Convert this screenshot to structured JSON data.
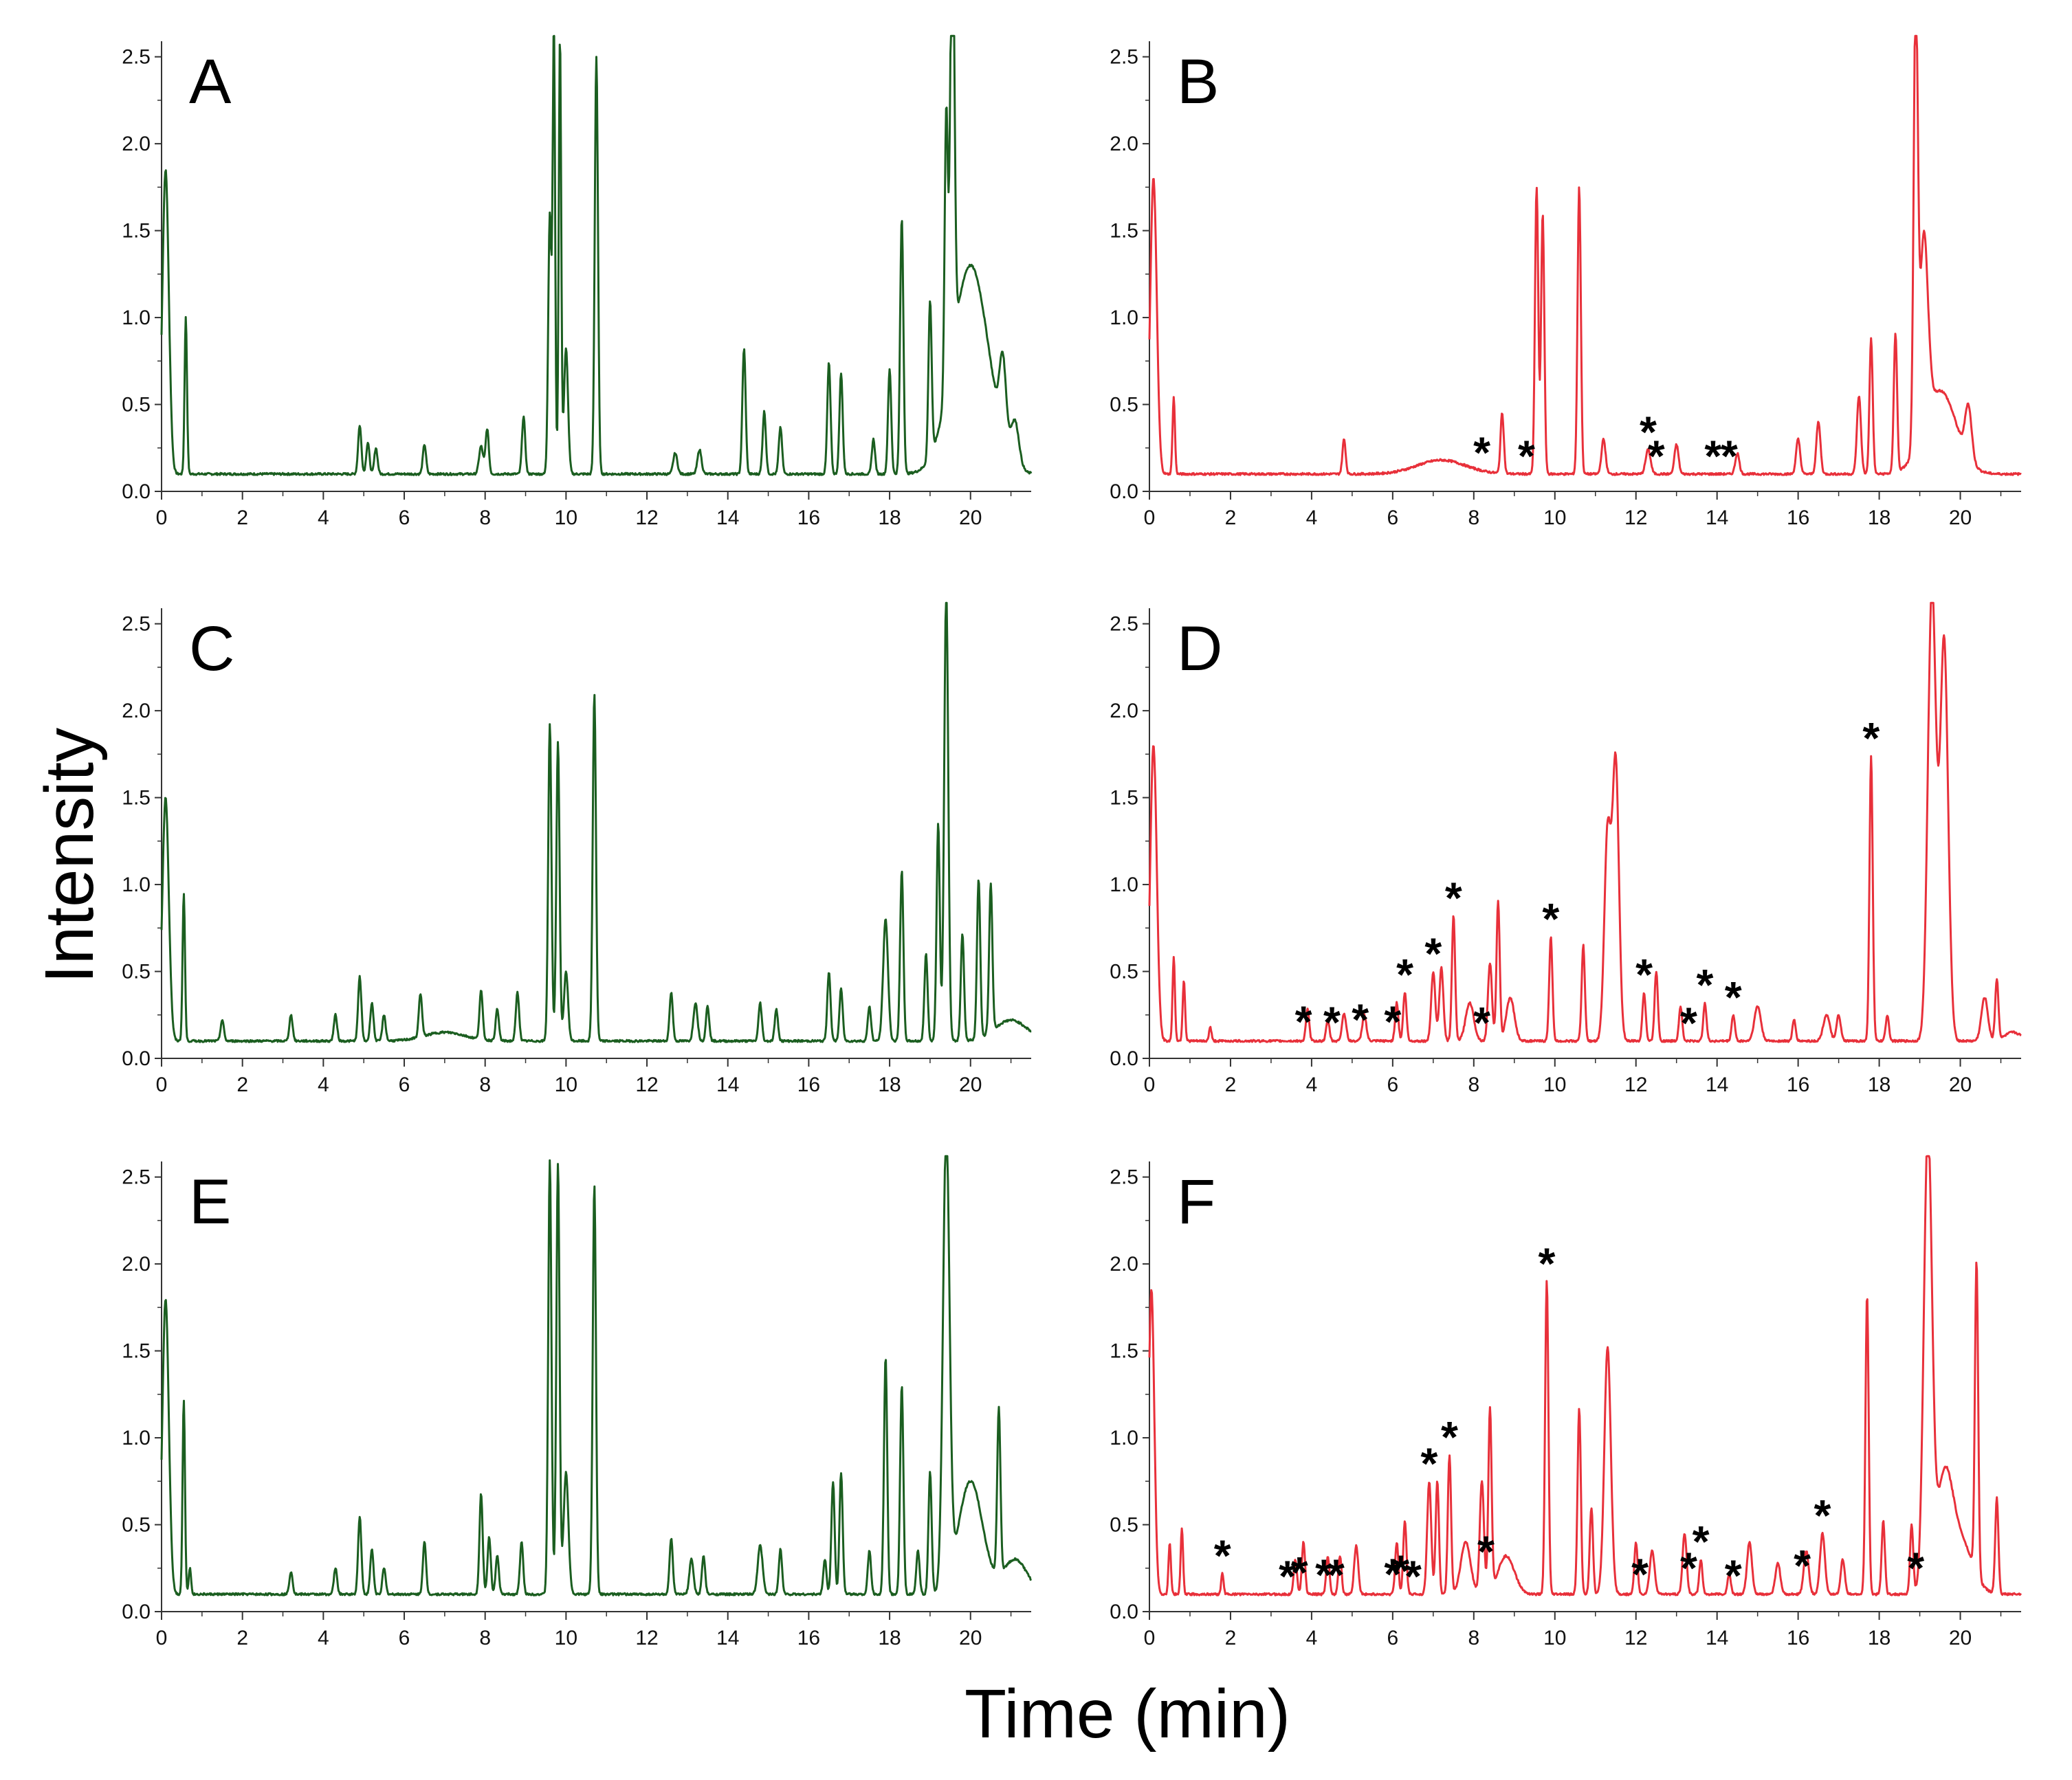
{
  "figure": {
    "ylabel": "Intensity",
    "xlabel": "Time (min)"
  },
  "colors": {
    "green": "#1b5e20",
    "red": "#e8303a"
  },
  "chart_data": [
    {
      "type": "line",
      "panel": "A",
      "color": "#1b5e20",
      "xlim": [
        0,
        21.5
      ],
      "ylim": [
        0,
        2.55
      ],
      "xticks": [
        "0",
        "2",
        "4",
        "6",
        "8",
        "10",
        "12",
        "14",
        "16",
        "18",
        "20"
      ],
      "yticks": [
        "0.0",
        "0.5",
        "1.0",
        "1.5",
        "2.0",
        "2.5"
      ],
      "baseline": 0.1,
      "peaks": [
        [
          0.1,
          1.75,
          0.08
        ],
        [
          0.6,
          0.9,
          0.03
        ],
        [
          4.9,
          0.28,
          0.04
        ],
        [
          5.1,
          0.18,
          0.04
        ],
        [
          5.3,
          0.15,
          0.04
        ],
        [
          6.5,
          0.17,
          0.04
        ],
        [
          7.9,
          0.16,
          0.05
        ],
        [
          8.05,
          0.26,
          0.04
        ],
        [
          8.95,
          0.33,
          0.04
        ],
        [
          9.6,
          1.5,
          0.04
        ],
        [
          9.7,
          2.53,
          0.03
        ],
        [
          9.85,
          2.52,
          0.03
        ],
        [
          10.0,
          0.72,
          0.05
        ],
        [
          10.75,
          2.4,
          0.04
        ],
        [
          12.7,
          0.12,
          0.05
        ],
        [
          13.3,
          0.14,
          0.05
        ],
        [
          14.4,
          0.72,
          0.04
        ],
        [
          14.9,
          0.36,
          0.04
        ],
        [
          15.3,
          0.27,
          0.04
        ],
        [
          16.5,
          0.64,
          0.04
        ],
        [
          16.8,
          0.58,
          0.04
        ],
        [
          17.6,
          0.2,
          0.04
        ],
        [
          18.0,
          0.6,
          0.04
        ],
        [
          18.3,
          1.47,
          0.04
        ],
        [
          19.0,
          0.9,
          0.04
        ],
        [
          19.4,
          1.6,
          0.04
        ],
        [
          19.55,
          2.63,
          0.05
        ],
        [
          20.0,
          1.2,
          0.45
        ],
        [
          20.8,
          0.45,
          0.08
        ],
        [
          21.1,
          0.25,
          0.1
        ]
      ],
      "annotations": [],
      "asterisks": []
    },
    {
      "type": "line",
      "panel": "B",
      "color": "#e8303a",
      "xlim": [
        0,
        21.5
      ],
      "ylim": [
        0,
        2.55
      ],
      "xticks": [
        "0",
        "2",
        "4",
        "6",
        "8",
        "10",
        "12",
        "14",
        "16",
        "18",
        "20"
      ],
      "yticks": [
        "0.0",
        "0.5",
        "1.0",
        "1.5",
        "2.0",
        "2.5"
      ],
      "baseline": 0.1,
      "peaks": [
        [
          0.1,
          1.7,
          0.08
        ],
        [
          0.6,
          0.44,
          0.03
        ],
        [
          4.8,
          0.2,
          0.04
        ],
        [
          7.2,
          0.08,
          0.6
        ],
        [
          8.7,
          0.35,
          0.04
        ],
        [
          9.55,
          1.65,
          0.04
        ],
        [
          9.7,
          1.5,
          0.04
        ],
        [
          10.6,
          1.65,
          0.04
        ],
        [
          11.2,
          0.2,
          0.05
        ],
        [
          12.3,
          0.14,
          0.06
        ],
        [
          13.0,
          0.17,
          0.05
        ],
        [
          14.5,
          0.12,
          0.05
        ],
        [
          16.0,
          0.2,
          0.05
        ],
        [
          16.5,
          0.3,
          0.05
        ],
        [
          17.5,
          0.45,
          0.05
        ],
        [
          17.8,
          0.78,
          0.04
        ],
        [
          18.4,
          0.8,
          0.04
        ],
        [
          18.9,
          2.55,
          0.05
        ],
        [
          19.1,
          1.1,
          0.1
        ],
        [
          19.5,
          0.48,
          0.4
        ],
        [
          20.2,
          0.3,
          0.08
        ]
      ],
      "annotations": [],
      "asterisks": [
        8.2,
        9.3,
        12.3,
        12.5,
        13.9,
        14.3
      ]
    },
    {
      "type": "line",
      "panel": "C",
      "color": "#1b5e20",
      "xlim": [
        0,
        21.5
      ],
      "ylim": [
        0,
        2.55
      ],
      "xticks": [
        "0",
        "2",
        "4",
        "6",
        "8",
        "10",
        "12",
        "14",
        "16",
        "18",
        "20"
      ],
      "yticks": [
        "0.0",
        "0.5",
        "1.0",
        "1.5",
        "2.0",
        "2.5"
      ],
      "baseline": 0.1,
      "peaks": [
        [
          0.1,
          1.4,
          0.08
        ],
        [
          0.55,
          0.85,
          0.03
        ],
        [
          1.5,
          0.12,
          0.04
        ],
        [
          3.2,
          0.15,
          0.04
        ],
        [
          4.3,
          0.15,
          0.04
        ],
        [
          4.9,
          0.37,
          0.04
        ],
        [
          5.2,
          0.22,
          0.04
        ],
        [
          5.5,
          0.15,
          0.04
        ],
        [
          6.4,
          0.25,
          0.04
        ],
        [
          7.0,
          0.05,
          0.5
        ],
        [
          7.9,
          0.28,
          0.04
        ],
        [
          8.3,
          0.18,
          0.04
        ],
        [
          8.8,
          0.28,
          0.04
        ],
        [
          9.6,
          1.83,
          0.04
        ],
        [
          9.8,
          1.72,
          0.04
        ],
        [
          10.0,
          0.4,
          0.05
        ],
        [
          10.7,
          2.0,
          0.04
        ],
        [
          12.6,
          0.28,
          0.04
        ],
        [
          13.2,
          0.22,
          0.05
        ],
        [
          13.5,
          0.2,
          0.04
        ],
        [
          14.8,
          0.22,
          0.04
        ],
        [
          15.2,
          0.18,
          0.04
        ],
        [
          16.5,
          0.4,
          0.04
        ],
        [
          16.8,
          0.3,
          0.04
        ],
        [
          17.5,
          0.2,
          0.04
        ],
        [
          17.9,
          0.7,
          0.06
        ],
        [
          18.3,
          0.98,
          0.04
        ],
        [
          18.9,
          0.5,
          0.04
        ],
        [
          19.2,
          1.25,
          0.04
        ],
        [
          19.4,
          2.6,
          0.05
        ],
        [
          19.8,
          0.62,
          0.04
        ],
        [
          20.2,
          0.92,
          0.04
        ],
        [
          20.5,
          0.85,
          0.04
        ],
        [
          21.0,
          0.12,
          0.4
        ]
      ],
      "annotations": [],
      "asterisks": []
    },
    {
      "type": "line",
      "panel": "D",
      "color": "#e8303a",
      "xlim": [
        0,
        21.5
      ],
      "ylim": [
        0,
        2.55
      ],
      "xticks": [
        "0",
        "2",
        "4",
        "6",
        "8",
        "10",
        "12",
        "14",
        "16",
        "18",
        "20"
      ],
      "yticks": [
        "0.0",
        "0.5",
        "1.0",
        "1.5",
        "2.0",
        "2.5"
      ],
      "baseline": 0.1,
      "peaks": [
        [
          0.1,
          1.7,
          0.08
        ],
        [
          0.6,
          0.48,
          0.03
        ],
        [
          0.85,
          0.35,
          0.03
        ],
        [
          1.5,
          0.08,
          0.03
        ],
        [
          3.9,
          0.18,
          0.04
        ],
        [
          4.4,
          0.12,
          0.04
        ],
        [
          4.8,
          0.16,
          0.05
        ],
        [
          5.3,
          0.15,
          0.05
        ],
        [
          6.1,
          0.22,
          0.04
        ],
        [
          6.3,
          0.28,
          0.04
        ],
        [
          7.0,
          0.4,
          0.05
        ],
        [
          7.2,
          0.42,
          0.05
        ],
        [
          7.5,
          0.72,
          0.04
        ],
        [
          7.9,
          0.22,
          0.1
        ],
        [
          8.4,
          0.45,
          0.05
        ],
        [
          8.6,
          0.8,
          0.04
        ],
        [
          8.9,
          0.25,
          0.1
        ],
        [
          9.9,
          0.6,
          0.04
        ],
        [
          10.7,
          0.55,
          0.04
        ],
        [
          11.3,
          1.2,
          0.08
        ],
        [
          11.5,
          1.6,
          0.08
        ],
        [
          12.2,
          0.28,
          0.04
        ],
        [
          12.5,
          0.4,
          0.04
        ],
        [
          13.1,
          0.2,
          0.04
        ],
        [
          13.7,
          0.22,
          0.04
        ],
        [
          14.4,
          0.15,
          0.04
        ],
        [
          15.0,
          0.2,
          0.08
        ],
        [
          15.9,
          0.12,
          0.04
        ],
        [
          16.7,
          0.15,
          0.08
        ],
        [
          17.0,
          0.15,
          0.05
        ],
        [
          17.8,
          1.64,
          0.04
        ],
        [
          18.2,
          0.15,
          0.04
        ],
        [
          19.3,
          2.6,
          0.1
        ],
        [
          19.6,
          2.3,
          0.1
        ],
        [
          20.6,
          0.25,
          0.08
        ],
        [
          20.9,
          0.35,
          0.04
        ],
        [
          21.3,
          0.05,
          0.2
        ]
      ],
      "annotations": [],
      "asterisks": [
        3.8,
        4.5,
        5.2,
        6.0,
        6.3,
        7.0,
        7.5,
        8.2,
        9.9,
        12.2,
        13.3,
        13.7,
        14.4,
        17.8
      ]
    },
    {
      "type": "line",
      "panel": "E",
      "color": "#1b5e20",
      "xlim": [
        0,
        21.5
      ],
      "ylim": [
        0,
        2.55
      ],
      "xticks": [
        "0",
        "2",
        "4",
        "6",
        "8",
        "10",
        "12",
        "14",
        "16",
        "18",
        "20"
      ],
      "yticks": [
        "0.0",
        "0.5",
        "1.0",
        "1.5",
        "2.0",
        "2.5"
      ],
      "baseline": 0.1,
      "peaks": [
        [
          0.1,
          1.7,
          0.08
        ],
        [
          0.55,
          1.12,
          0.03
        ],
        [
          0.7,
          0.15,
          0.03
        ],
        [
          3.2,
          0.13,
          0.04
        ],
        [
          4.3,
          0.15,
          0.04
        ],
        [
          4.9,
          0.45,
          0.04
        ],
        [
          5.2,
          0.26,
          0.04
        ],
        [
          5.5,
          0.15,
          0.04
        ],
        [
          6.5,
          0.3,
          0.04
        ],
        [
          7.9,
          0.58,
          0.04
        ],
        [
          8.1,
          0.33,
          0.04
        ],
        [
          8.3,
          0.22,
          0.04
        ],
        [
          8.9,
          0.3,
          0.04
        ],
        [
          9.6,
          2.5,
          0.04
        ],
        [
          9.8,
          2.48,
          0.04
        ],
        [
          10.0,
          0.7,
          0.06
        ],
        [
          10.7,
          2.36,
          0.04
        ],
        [
          12.6,
          0.32,
          0.04
        ],
        [
          13.1,
          0.2,
          0.05
        ],
        [
          13.4,
          0.22,
          0.04
        ],
        [
          14.8,
          0.28,
          0.06
        ],
        [
          15.3,
          0.26,
          0.04
        ],
        [
          16.4,
          0.2,
          0.04
        ],
        [
          16.6,
          0.65,
          0.04
        ],
        [
          16.8,
          0.7,
          0.04
        ],
        [
          17.5,
          0.25,
          0.04
        ],
        [
          17.9,
          1.36,
          0.04
        ],
        [
          18.3,
          1.2,
          0.04
        ],
        [
          18.7,
          0.25,
          0.04
        ],
        [
          19.0,
          0.7,
          0.04
        ],
        [
          19.4,
          2.6,
          0.08
        ],
        [
          20.0,
          0.65,
          0.3
        ],
        [
          20.7,
          0.95,
          0.04
        ],
        [
          21.1,
          0.2,
          0.3
        ]
      ],
      "annotations": [],
      "asterisks": []
    },
    {
      "type": "line",
      "panel": "F",
      "color": "#e8303a",
      "xlim": [
        0,
        21.5
      ],
      "ylim": [
        0,
        2.55
      ],
      "xticks": [
        "0",
        "2",
        "4",
        "6",
        "8",
        "10",
        "12",
        "14",
        "16",
        "18",
        "20"
      ],
      "yticks": [
        "0.0",
        "0.5",
        "1.0",
        "1.5",
        "2.0",
        "2.5"
      ],
      "baseline": 0.1,
      "peaks": [
        [
          0.05,
          1.75,
          0.07
        ],
        [
          0.5,
          0.3,
          0.03
        ],
        [
          0.8,
          0.38,
          0.03
        ],
        [
          1.8,
          0.12,
          0.03
        ],
        [
          3.6,
          0.2,
          0.04
        ],
        [
          3.8,
          0.3,
          0.04
        ],
        [
          4.4,
          0.22,
          0.04
        ],
        [
          4.7,
          0.22,
          0.04
        ],
        [
          5.1,
          0.28,
          0.05
        ],
        [
          6.1,
          0.3,
          0.04
        ],
        [
          6.3,
          0.42,
          0.04
        ],
        [
          6.9,
          0.65,
          0.05
        ],
        [
          7.1,
          0.65,
          0.04
        ],
        [
          7.4,
          0.8,
          0.04
        ],
        [
          7.8,
          0.3,
          0.12
        ],
        [
          8.2,
          0.65,
          0.05
        ],
        [
          8.4,
          1.05,
          0.04
        ],
        [
          8.8,
          0.22,
          0.2
        ],
        [
          9.8,
          1.8,
          0.04
        ],
        [
          10.6,
          1.07,
          0.04
        ],
        [
          10.9,
          0.5,
          0.04
        ],
        [
          11.3,
          1.42,
          0.08
        ],
        [
          12.0,
          0.3,
          0.04
        ],
        [
          12.4,
          0.25,
          0.06
        ],
        [
          13.2,
          0.35,
          0.05
        ],
        [
          13.6,
          0.2,
          0.04
        ],
        [
          14.3,
          0.12,
          0.04
        ],
        [
          14.8,
          0.3,
          0.06
        ],
        [
          15.5,
          0.18,
          0.06
        ],
        [
          16.2,
          0.25,
          0.06
        ],
        [
          16.6,
          0.35,
          0.06
        ],
        [
          17.1,
          0.2,
          0.05
        ],
        [
          17.7,
          1.72,
          0.04
        ],
        [
          18.1,
          0.42,
          0.04
        ],
        [
          18.8,
          0.4,
          0.04
        ],
        [
          19.2,
          2.6,
          0.1
        ],
        [
          19.6,
          0.6,
          0.2
        ],
        [
          20.0,
          0.3,
          0.3
        ],
        [
          20.4,
          1.8,
          0.04
        ],
        [
          20.9,
          0.55,
          0.04
        ]
      ],
      "annotations": [],
      "asterisks": [
        1.8,
        3.4,
        3.7,
        4.3,
        4.6,
        6.0,
        6.2,
        6.5,
        6.9,
        7.4,
        8.3,
        9.8,
        12.1,
        13.3,
        13.6,
        14.4,
        16.1,
        16.6,
        18.9
      ]
    }
  ],
  "panels": [
    {
      "letter": "A"
    },
    {
      "letter": "B"
    },
    {
      "letter": "C"
    },
    {
      "letter": "D"
    },
    {
      "letter": "E"
    },
    {
      "letter": "F"
    }
  ]
}
